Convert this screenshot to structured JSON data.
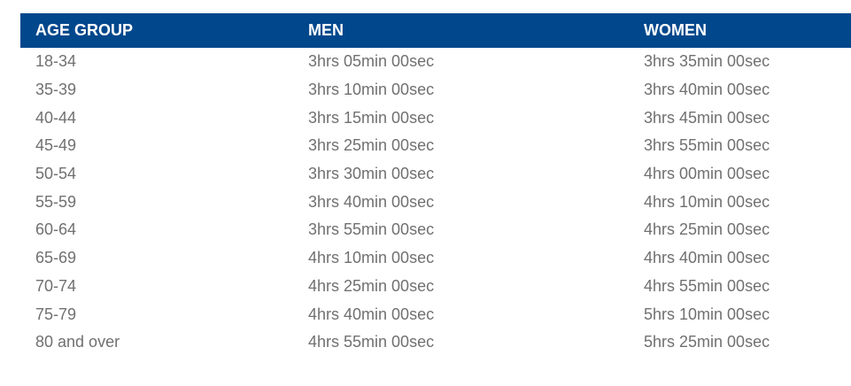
{
  "table": {
    "headers": [
      "AGE GROUP",
      "MEN",
      "WOMEN"
    ],
    "header_color": "#00478c",
    "rows": [
      [
        "18-34",
        "3hrs 05min 00sec",
        "3hrs 35min 00sec"
      ],
      [
        "35-39",
        "3hrs 10min 00sec",
        "3hrs 40min 00sec"
      ],
      [
        "40-44",
        "3hrs 15min 00sec",
        "3hrs 45min 00sec"
      ],
      [
        "45-49",
        "3hrs 25min 00sec",
        "3hrs 55min 00sec"
      ],
      [
        "50-54",
        "3hrs 30min 00sec",
        "4hrs 00min 00sec"
      ],
      [
        "55-59",
        "3hrs 40min 00sec",
        "4hrs 10min 00sec"
      ],
      [
        "60-64",
        "3hrs 55min 00sec",
        "4hrs 25min 00sec"
      ],
      [
        "65-69",
        "4hrs 10min 00sec",
        "4hrs 40min 00sec"
      ],
      [
        "70-74",
        "4hrs 25min 00sec",
        "4hrs 55min 00sec"
      ],
      [
        "75-79",
        "4hrs 40min 00sec",
        "5hrs 10min 00sec"
      ],
      [
        "80 and over",
        "4hrs 55min 00sec",
        "5hrs 25min 00sec"
      ]
    ]
  }
}
